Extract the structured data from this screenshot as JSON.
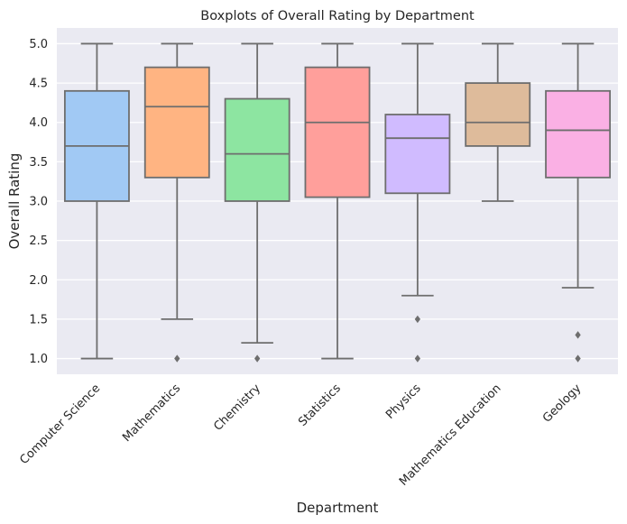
{
  "chart_data": {
    "type": "boxplot",
    "title": "Boxplots of Overall Rating by Department",
    "xlabel": "Department",
    "ylabel": "Overall Rating",
    "ylim": [
      0.8,
      5.2
    ],
    "yticks": [
      1.0,
      1.5,
      2.0,
      2.5,
      3.0,
      3.5,
      4.0,
      4.5,
      5.0
    ],
    "ytick_labels": [
      "1.0",
      "1.5",
      "2.0",
      "2.5",
      "3.0",
      "3.5",
      "4.0",
      "4.5",
      "5.0"
    ],
    "grid": true,
    "background": "#eaeaf2",
    "median_color": "#6e6e6e",
    "categories": [
      "Computer Science",
      "Mathematics",
      "Chemistry",
      "Statistics",
      "Physics",
      "Mathematics Education",
      "Geology"
    ],
    "boxes": [
      {
        "category": "Computer Science",
        "whisker_low": 1.0,
        "q1": 3.0,
        "median": 3.7,
        "q3": 4.4,
        "whisker_high": 5.0,
        "outliers": [],
        "color": "#a1c9f4"
      },
      {
        "category": "Mathematics",
        "whisker_low": 1.5,
        "q1": 3.3,
        "median": 4.2,
        "q3": 4.7,
        "whisker_high": 5.0,
        "outliers": [
          1.0
        ],
        "color": "#ffb482"
      },
      {
        "category": "Chemistry",
        "whisker_low": 1.2,
        "q1": 3.0,
        "median": 3.6,
        "q3": 4.3,
        "whisker_high": 5.0,
        "outliers": [
          1.0
        ],
        "color": "#8de5a1"
      },
      {
        "category": "Statistics",
        "whisker_low": 1.0,
        "q1": 3.05,
        "median": 4.0,
        "q3": 4.7,
        "whisker_high": 5.0,
        "outliers": [],
        "color": "#ff9f9b"
      },
      {
        "category": "Physics",
        "whisker_low": 1.8,
        "q1": 3.1,
        "median": 3.8,
        "q3": 4.1,
        "whisker_high": 5.0,
        "outliers": [
          1.5,
          1.0
        ],
        "color": "#d0bbff"
      },
      {
        "category": "Mathematics Education",
        "whisker_low": 3.0,
        "q1": 3.7,
        "median": 4.0,
        "q3": 4.5,
        "whisker_high": 5.0,
        "outliers": [],
        "color": "#debb9b"
      },
      {
        "category": "Geology",
        "whisker_low": 1.9,
        "q1": 3.3,
        "median": 3.9,
        "q3": 4.4,
        "whisker_high": 5.0,
        "outliers": [
          1.3,
          1.0
        ],
        "color": "#fab0e4"
      }
    ]
  }
}
